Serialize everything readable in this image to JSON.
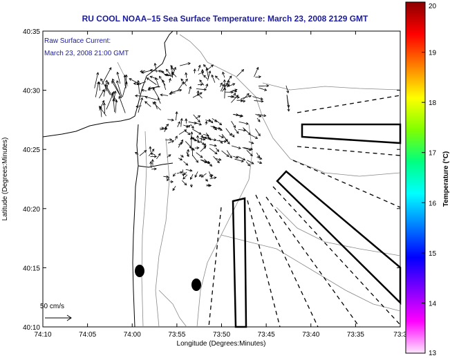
{
  "title": "RU COOL  NOAA–15  Sea Surface Temperature:  March 23, 2008 2129 GMT",
  "annotation": {
    "line1": "Raw Surface Current:",
    "line2": "March 23, 2008 21:00 GMT"
  },
  "scale_label": "50 cm/s",
  "x_axis": {
    "label": "Longitude (Degrees:Minutes)",
    "ticks": [
      "74:10",
      "74:05",
      "74:00",
      "73:55",
      "73:50",
      "73:45",
      "73:40",
      "73:35",
      "73:3"
    ]
  },
  "y_axis": {
    "label": "Latitude (Degrees:Minutes)",
    "ticks": [
      "40:35",
      "40:30",
      "40:25",
      "40:20",
      "40:15",
      "40:10"
    ]
  },
  "colorbar": {
    "label": "Temperature (°C)",
    "ticks": [
      "20",
      "19",
      "18",
      "17",
      "16",
      "15",
      "14",
      "13"
    ],
    "colors": [
      "#8b0000",
      "#ff0000",
      "#ff8000",
      "#ffff00",
      "#80ff00",
      "#00ff80",
      "#00ffff",
      "#0080ff",
      "#0000ff",
      "#8000ff",
      "#ff00ff",
      "#ffe6ff"
    ]
  }
}
